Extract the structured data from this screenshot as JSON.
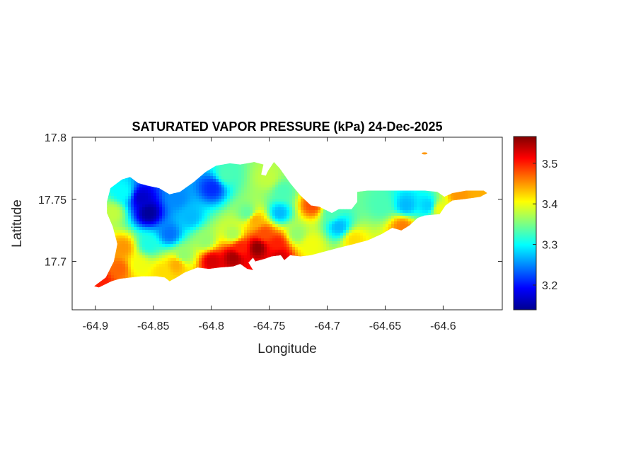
{
  "chart_data": {
    "type": "heatmap",
    "title": "SATURATED VAPOR PRESSURE (kPa) 24-Dec-2025",
    "xlabel": "Longitude",
    "ylabel": "Latitude",
    "xlim": [
      -64.92,
      -64.549
    ],
    "ylim": [
      17.661,
      17.8
    ],
    "xticks": [
      -64.9,
      -64.85,
      -64.8,
      -64.75,
      -64.7,
      -64.65,
      -64.6
    ],
    "xtick_labels": [
      "-64.9",
      "-64.85",
      "-64.8",
      "-64.75",
      "-64.7",
      "-64.65",
      "-64.6"
    ],
    "yticks": [
      17.7,
      17.75,
      17.8
    ],
    "ytick_labels": [
      "17.7",
      "17.75",
      "17.8"
    ],
    "colormap": "jet",
    "clim": [
      3.139,
      3.566
    ],
    "colorbar": {
      "location": "right",
      "ticks": [
        3.2,
        3.3,
        3.4,
        3.5
      ],
      "tick_labels": [
        "3.2",
        "3.3",
        "3.4",
        "3.5"
      ]
    },
    "grid": false,
    "boundary": [
      [
        -64.901,
        17.68
      ],
      [
        -64.891,
        17.687
      ],
      [
        -64.884,
        17.7
      ],
      [
        -64.881,
        17.714
      ],
      [
        -64.885,
        17.728
      ],
      [
        -64.89,
        17.739
      ],
      [
        -64.89,
        17.748
      ],
      [
        -64.887,
        17.759
      ],
      [
        -64.877,
        17.766
      ],
      [
        -64.87,
        17.768
      ],
      [
        -64.863,
        17.763
      ],
      [
        -64.855,
        17.761
      ],
      [
        -64.845,
        17.759
      ],
      [
        -64.836,
        17.754
      ],
      [
        -64.827,
        17.756
      ],
      [
        -64.815,
        17.764
      ],
      [
        -64.805,
        17.772
      ],
      [
        -64.796,
        17.777
      ],
      [
        -64.784,
        17.779
      ],
      [
        -64.775,
        17.778
      ],
      [
        -64.763,
        17.78
      ],
      [
        -64.755,
        17.778
      ],
      [
        -64.757,
        17.77
      ],
      [
        -64.753,
        17.769
      ],
      [
        -64.751,
        17.773
      ],
      [
        -64.746,
        17.78
      ],
      [
        -64.741,
        17.775
      ],
      [
        -64.732,
        17.763
      ],
      [
        -64.723,
        17.753
      ],
      [
        -64.714,
        17.745
      ],
      [
        -64.707,
        17.744
      ],
      [
        -64.696,
        17.739
      ],
      [
        -64.69,
        17.742
      ],
      [
        -64.679,
        17.742
      ],
      [
        -64.674,
        17.748
      ],
      [
        -64.674,
        17.756
      ],
      [
        -64.665,
        17.757
      ],
      [
        -64.641,
        17.757
      ],
      [
        -64.616,
        17.757
      ],
      [
        -64.605,
        17.756
      ],
      [
        -64.599,
        17.752
      ],
      [
        -64.592,
        17.755
      ],
      [
        -64.58,
        17.757
      ],
      [
        -64.565,
        17.757
      ],
      [
        -64.562,
        17.755
      ],
      [
        -64.568,
        17.752
      ],
      [
        -64.575,
        17.751
      ],
      [
        -64.592,
        17.749
      ],
      [
        -64.598,
        17.745
      ],
      [
        -64.603,
        17.738
      ],
      [
        -64.616,
        17.737
      ],
      [
        -64.622,
        17.735
      ],
      [
        -64.629,
        17.729
      ],
      [
        -64.636,
        17.725
      ],
      [
        -64.644,
        17.727
      ],
      [
        -64.653,
        17.722
      ],
      [
        -64.665,
        17.717
      ],
      [
        -64.677,
        17.714
      ],
      [
        -64.69,
        17.711
      ],
      [
        -64.702,
        17.708
      ],
      [
        -64.714,
        17.705
      ],
      [
        -64.723,
        17.704
      ],
      [
        -64.732,
        17.705
      ],
      [
        -64.737,
        17.701
      ],
      [
        -64.74,
        17.705
      ],
      [
        -64.748,
        17.704
      ],
      [
        -64.754,
        17.702
      ],
      [
        -64.762,
        17.7
      ],
      [
        -64.764,
        17.703
      ],
      [
        -64.768,
        17.699
      ],
      [
        -64.764,
        17.693
      ],
      [
        -64.769,
        17.694
      ],
      [
        -64.775,
        17.698
      ],
      [
        -64.781,
        17.696
      ],
      [
        -64.793,
        17.695
      ],
      [
        -64.802,
        17.694
      ],
      [
        -64.812,
        17.695
      ],
      [
        -64.823,
        17.691
      ],
      [
        -64.83,
        17.687
      ],
      [
        -64.836,
        17.684
      ],
      [
        -64.84,
        17.687
      ],
      [
        -64.847,
        17.688
      ],
      [
        -64.86,
        17.688
      ],
      [
        -64.87,
        17.687
      ],
      [
        -64.879,
        17.686
      ],
      [
        -64.886,
        17.684
      ],
      [
        -64.897,
        17.679
      ]
    ],
    "islet": {
      "lon": -64.616,
      "lat": 17.787,
      "value": 3.45
    },
    "samples": [
      [
        -64.854,
        17.739,
        3.15
      ],
      [
        -64.86,
        17.751,
        3.17
      ],
      [
        -64.799,
        17.759,
        3.21
      ],
      [
        -64.836,
        17.722,
        3.24
      ],
      [
        -64.876,
        17.756,
        3.3
      ],
      [
        -64.885,
        17.739,
        3.38
      ],
      [
        -64.876,
        17.711,
        3.45
      ],
      [
        -64.879,
        17.694,
        3.47
      ],
      [
        -64.894,
        17.683,
        3.5
      ],
      [
        -64.842,
        17.691,
        3.42
      ],
      [
        -64.824,
        17.705,
        3.36
      ],
      [
        -64.805,
        17.717,
        3.36
      ],
      [
        -64.781,
        17.722,
        3.37
      ],
      [
        -64.769,
        17.739,
        3.34
      ],
      [
        -64.751,
        17.767,
        3.38
      ],
      [
        -64.738,
        17.756,
        3.33
      ],
      [
        -64.741,
        17.739,
        3.27
      ],
      [
        -64.726,
        17.722,
        3.36
      ],
      [
        -64.713,
        17.745,
        3.48
      ],
      [
        -64.69,
        17.728,
        3.27
      ],
      [
        -64.696,
        17.739,
        3.33
      ],
      [
        -64.653,
        17.745,
        3.33
      ],
      [
        -64.632,
        17.745,
        3.27
      ],
      [
        -64.613,
        17.745,
        3.28
      ],
      [
        -64.603,
        17.742,
        3.4
      ],
      [
        -64.586,
        17.753,
        3.45
      ],
      [
        -64.568,
        17.755,
        3.44
      ],
      [
        -64.635,
        17.728,
        3.46
      ],
      [
        -64.799,
        17.7,
        3.53
      ],
      [
        -64.781,
        17.703,
        3.55
      ],
      [
        -64.76,
        17.711,
        3.56
      ],
      [
        -64.754,
        17.722,
        3.48
      ],
      [
        -64.762,
        17.733,
        3.44
      ],
      [
        -64.743,
        17.714,
        3.5
      ],
      [
        -64.677,
        17.717,
        3.42
      ],
      [
        -64.741,
        17.704,
        3.53
      ],
      [
        -64.787,
        17.77,
        3.33
      ],
      [
        -64.83,
        17.751,
        3.25
      ],
      [
        -64.818,
        17.736,
        3.27
      ],
      [
        -64.854,
        17.714,
        3.31
      ],
      [
        -64.775,
        17.711,
        3.5
      ],
      [
        -64.83,
        17.697,
        3.44
      ],
      [
        -64.863,
        17.697,
        3.4
      ],
      [
        -64.714,
        17.714,
        3.4
      ]
    ]
  }
}
